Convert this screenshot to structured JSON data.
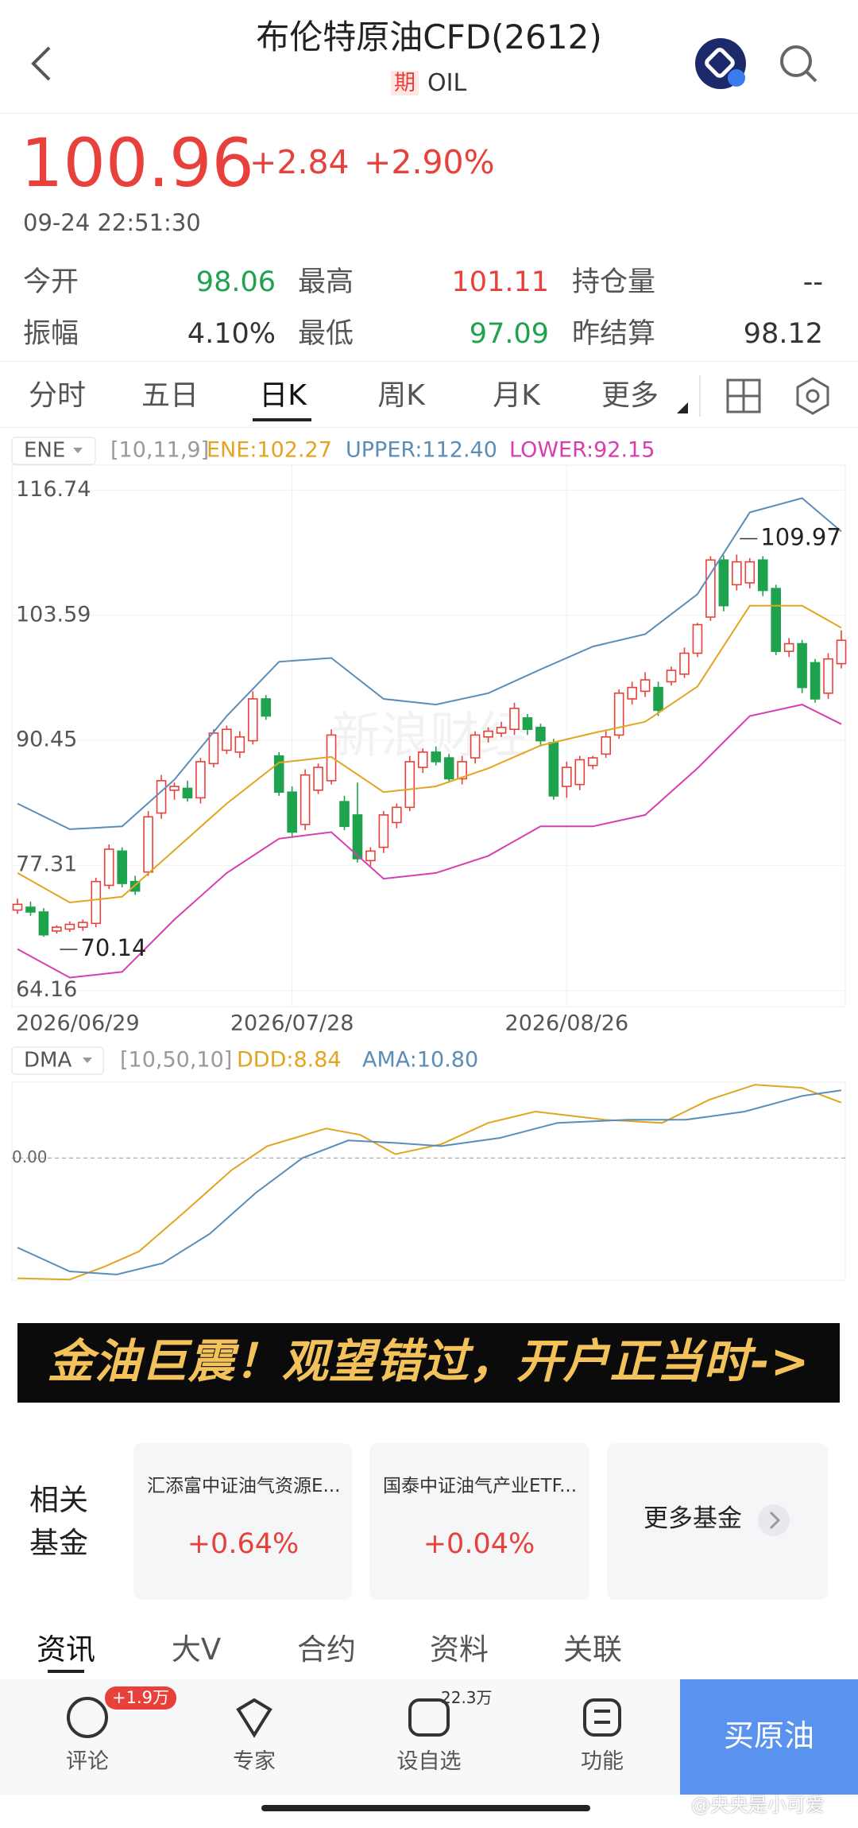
{
  "header": {
    "title": "布伦特原油CFD(2612)",
    "badge": "期",
    "code": "OIL"
  },
  "quote": {
    "price": "100.96",
    "change": "+2.84",
    "change_pct": "+2.90%",
    "time": "09-24 22:51:30"
  },
  "stats": [
    {
      "label": "今开",
      "value": "98.06",
      "color": "#1ea24d"
    },
    {
      "label": "最高",
      "value": "101.11",
      "color": "#e8413b"
    },
    {
      "label": "持仓量",
      "value": "--",
      "color": "#333333"
    },
    {
      "label": "振幅",
      "value": "4.10%",
      "color": "#333333"
    },
    {
      "label": "最低",
      "value": "97.09",
      "color": "#1ea24d"
    },
    {
      "label": "昨结算",
      "value": "98.12",
      "color": "#333333"
    }
  ],
  "tabs": [
    "分时",
    "五日",
    "日K",
    "周K",
    "月K",
    "更多"
  ],
  "chart_watermark": "新浪财经",
  "chart_data": [
    {
      "type": "candlestick",
      "indicator": "ENE",
      "params": "[10,11,9]",
      "up_color": "#e8413b",
      "down_color": "#1ea24d",
      "categories": [
        "2026/06/29",
        null,
        null,
        null,
        null,
        null,
        null,
        null,
        null,
        null,
        null,
        null,
        null,
        null,
        null,
        null,
        null,
        null,
        null,
        null,
        null,
        "2026/07/28",
        null,
        null,
        null,
        null,
        null,
        null,
        null,
        null,
        null,
        null,
        null,
        null,
        null,
        null,
        null,
        null,
        null,
        null,
        null,
        null,
        "2026/08/26",
        null,
        null,
        null,
        null,
        null,
        null,
        null,
        null,
        null,
        null,
        null,
        null,
        null,
        null,
        null,
        null,
        null,
        null,
        null,
        null,
        null
      ],
      "candles": {
        "open": [
          72.6,
          72.9,
          72.4,
          70.4,
          70.6,
          70.8,
          71.2,
          75.2,
          78.8,
          75.6,
          76.6,
          82.8,
          85.2,
          85.4,
          84.4,
          88.0,
          89.4,
          89.2,
          90.4,
          94.8,
          88.8,
          85.0,
          81.6,
          85.2,
          86.2,
          84.0,
          82.6,
          77.8,
          79.2,
          81.8,
          83.4,
          87.6,
          89.2,
          88.6,
          86.4,
          88.6,
          90.8,
          91.2,
          91.6,
          92.8,
          91.8,
          90.2,
          85.6,
          85.8,
          87.8,
          89.0,
          91.0,
          94.8,
          95.6,
          96.0,
          96.6,
          97.4,
          99.6,
          103.4,
          109.4,
          106.8,
          107.0,
          109.4,
          106.4,
          99.8,
          100.6,
          98.6,
          95.4,
          98.5
        ],
        "high": [
          73.8,
          73.5,
          72.8,
          71.0,
          71.4,
          71.6,
          76.0,
          79.5,
          79.2,
          76.2,
          83.0,
          86.8,
          86.0,
          86.2,
          88.6,
          91.6,
          92.0,
          91.4,
          95.6,
          95.2,
          89.2,
          85.6,
          87.4,
          88.0,
          91.6,
          84.6,
          86.0,
          79.2,
          83.0,
          83.8,
          88.8,
          89.6,
          89.8,
          89.0,
          88.8,
          91.4,
          91.8,
          92.4,
          94.4,
          93.2,
          92.2,
          90.6,
          88.2,
          88.8,
          88.8,
          91.4,
          95.8,
          96.6,
          97.6,
          96.6,
          98.2,
          100.2,
          102.8,
          109.8,
          109.9,
          109.97,
          109.6,
          109.8,
          106.8,
          101.2,
          101.0,
          99.0,
          99.6,
          102.0
        ],
        "low": [
          72.2,
          72.0,
          69.8,
          70.14,
          70.3,
          70.4,
          70.8,
          74.8,
          75.0,
          74.2,
          76.2,
          82.2,
          84.2,
          84.0,
          83.8,
          87.6,
          89.0,
          88.6,
          90.0,
          92.6,
          84.6,
          80.2,
          81.0,
          84.8,
          85.8,
          81.0,
          77.6,
          77.2,
          78.6,
          81.2,
          83.0,
          87.0,
          87.8,
          86.0,
          85.8,
          88.0,
          90.2,
          90.8,
          91.0,
          91.0,
          89.8,
          84.2,
          84.4,
          85.2,
          87.4,
          88.6,
          90.6,
          94.2,
          95.0,
          93.0,
          96.2,
          97.0,
          99.2,
          103.0,
          104.0,
          106.2,
          106.4,
          105.6,
          99.4,
          99.2,
          95.4,
          94.4,
          94.8,
          98.0
        ],
        "close": [
          73.2,
          72.4,
          70.0,
          70.8,
          71.1,
          71.3,
          75.6,
          79.0,
          75.4,
          74.6,
          82.4,
          86.2,
          85.6,
          84.4,
          88.2,
          91.2,
          91.6,
          90.8,
          94.8,
          93.0,
          85.0,
          80.8,
          86.8,
          87.6,
          91.0,
          81.4,
          78.0,
          78.8,
          82.6,
          83.4,
          88.2,
          89.2,
          88.2,
          86.4,
          88.2,
          91.0,
          91.4,
          91.8,
          93.8,
          91.6,
          90.4,
          84.6,
          87.6,
          88.4,
          88.6,
          90.8,
          95.4,
          96.0,
          96.8,
          93.6,
          97.8,
          99.6,
          102.6,
          109.4,
          104.6,
          109.2,
          109.2,
          106.2,
          99.8,
          100.6,
          96.0,
          94.8,
          99.0,
          100.96
        ]
      },
      "series": [
        {
          "name": "ENE:102.27",
          "color": "#e3a520",
          "x": [
            0,
            4,
            8,
            12,
            16,
            20,
            24,
            28,
            32,
            36,
            40,
            44,
            48,
            52,
            56,
            60,
            63
          ],
          "values": [
            76.5,
            73.4,
            74.0,
            78.9,
            83.8,
            88.1,
            88.7,
            85.0,
            85.6,
            87.5,
            89.9,
            91.2,
            92.4,
            96.1,
            104.6,
            104.6,
            102.27
          ]
        },
        {
          "name": "UPPER:112.40",
          "color": "#5b8db8",
          "x": [
            0,
            4,
            8,
            12,
            16,
            20,
            24,
            28,
            32,
            36,
            40,
            44,
            48,
            52,
            56,
            60,
            63
          ],
          "values": [
            83.8,
            81.1,
            81.4,
            86.3,
            93.0,
            98.7,
            99.1,
            94.8,
            94.2,
            95.4,
            97.9,
            100.3,
            101.6,
            105.8,
            114.4,
            115.9,
            112.4
          ]
        },
        {
          "name": "LOWER:92.15",
          "color": "#d63fb0",
          "x": [
            0,
            4,
            8,
            12,
            16,
            20,
            24,
            28,
            32,
            36,
            40,
            44,
            48,
            52,
            56,
            60,
            63
          ],
          "values": [
            68.5,
            65.5,
            66.1,
            71.6,
            76.5,
            80.1,
            80.8,
            75.9,
            76.5,
            78.3,
            81.4,
            81.4,
            82.6,
            87.5,
            93.0,
            94.2,
            92.15
          ]
        }
      ],
      "max_mark": {
        "x": 55,
        "value": 109.97
      },
      "min_mark": {
        "x": 3,
        "value": 70.14
      },
      "xlim": [
        0,
        63
      ],
      "ylim": [
        62.45,
        118.7
      ],
      "yticks": [
        116.74,
        103.59,
        90.45,
        77.31,
        64.16
      ],
      "grid": true
    },
    {
      "type": "line",
      "indicator": "DMA",
      "params": "[10,50,10]",
      "series": [
        {
          "name": "DDD:8.84",
          "color": "#e3a520",
          "x": [
            0,
            4,
            6.7,
            9.3,
            12.9,
            16.4,
            19.1,
            23.6,
            26.2,
            28.9,
            32.4,
            36,
            39.6,
            44.9,
            49.3,
            52.9,
            56.4,
            60,
            63
          ],
          "values": [
            -19.2,
            -19.4,
            -17.3,
            -14.9,
            -8.4,
            -1.9,
            1.9,
            4.7,
            3.7,
            0.6,
            2.2,
            5.6,
            7.4,
            6.1,
            5.6,
            9.3,
            11.7,
            11.2,
            8.84
          ]
        },
        {
          "name": "AMA:10.80",
          "color": "#5b8db8",
          "x": [
            0,
            4,
            7.6,
            11.1,
            14.7,
            18.2,
            21.8,
            25.3,
            28.9,
            32.4,
            36.9,
            41.3,
            46.7,
            51.1,
            55.6,
            60,
            63
          ],
          "values": [
            -14.3,
            -18.1,
            -18.6,
            -16.8,
            -12.1,
            -5.6,
            0,
            2.8,
            2.4,
            1.9,
            3.2,
            5.6,
            6.1,
            6.1,
            7.4,
            9.9,
            10.8
          ]
        }
      ],
      "xlim": [
        0,
        63
      ],
      "ylim": [
        -19.5,
        12.1
      ],
      "yticks": [
        {
          "value": 0,
          "label": "0.00"
        }
      ]
    }
  ],
  "banner": "金油巨震！观望错过，开户正当时->",
  "funds": {
    "title_lines": [
      "相关",
      "基金"
    ],
    "items": [
      {
        "name": "汇添富中证油气资源E...",
        "change": "+0.64%"
      },
      {
        "name": "国泰中证油气产业ETF...",
        "change": "+0.04%"
      }
    ],
    "more": "更多基金"
  },
  "news_tabs": [
    "资讯",
    "大V",
    "合约",
    "资料",
    "关联"
  ],
  "bottom_bar": {
    "items": [
      {
        "label": "评论",
        "badge": "+1.9万"
      },
      {
        "label": "专家"
      },
      {
        "label": "设自选",
        "badge": "22.3万"
      },
      {
        "label": "功能"
      }
    ],
    "buy": "买原油"
  },
  "watermark": "@央央是小可爱"
}
